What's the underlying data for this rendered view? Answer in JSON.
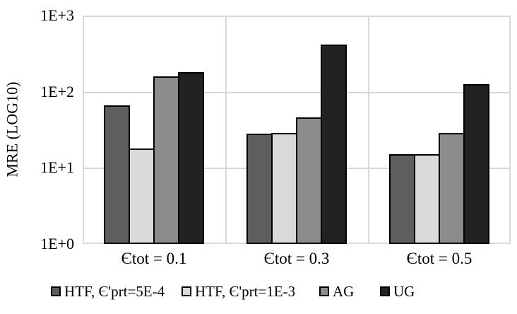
{
  "chart_data": {
    "type": "bar",
    "title": "",
    "ylabel": "MRE (LOG10)",
    "xlabel": "",
    "y_scale": "log10",
    "ylim": [
      1,
      1000
    ],
    "yticks": [
      "1E+0",
      "1E+1",
      "1E+2",
      "1E+3"
    ],
    "categories": [
      "Єtot = 0.1",
      "Єtot = 0.3",
      "Єtot = 0.5"
    ],
    "series": [
      {
        "name": "HTF, Є'prt=5E-4",
        "color": "#5e5e5e",
        "values": [
          66,
          28,
          15
        ]
      },
      {
        "name": "HTF, Є'prt=1E-3",
        "color": "#dadada",
        "values": [
          18,
          29,
          15
        ]
      },
      {
        "name": "AG",
        "color": "#8c8c8c",
        "values": [
          160,
          46,
          29
        ]
      },
      {
        "name": "UG",
        "color": "#222222",
        "values": [
          180,
          415,
          125
        ]
      }
    ],
    "legend_position": "bottom",
    "grid": true,
    "gridline_color": "#d9d9d9",
    "bar_border_color": "#000000"
  }
}
